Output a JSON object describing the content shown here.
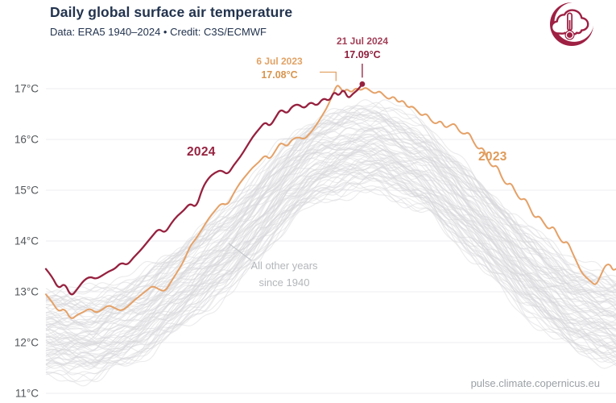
{
  "header": {
    "title": "Daily global surface air temperature",
    "subtitle": "Data: ERA5 1940–2024 • Credit: C3S/ECMWF"
  },
  "logo": {
    "label": "Climate Pulse logo",
    "color": "#9e2043"
  },
  "footer": {
    "url": "pulse.climate.copernicus.eu"
  },
  "chart_data": {
    "type": "line",
    "title": "Daily global surface air temperature",
    "subtitle": "Data: ERA5 1940–2024 • Credit: C3S/ECMWF",
    "x_unit": "day of year (Jan–Dec)",
    "x_range": [
      1,
      365
    ],
    "ylim": [
      11,
      17.6
    ],
    "grid": "horizontal",
    "legend_position": "inline-labels",
    "yticks": [
      {
        "value": 17,
        "label": "17°C"
      },
      {
        "value": 16,
        "label": "16°C"
      },
      {
        "value": 15,
        "label": "15°C"
      },
      {
        "value": 14,
        "label": "14°C"
      },
      {
        "value": 13,
        "label": "13°C"
      },
      {
        "value": 12,
        "label": "12°C"
      },
      {
        "value": 11,
        "label": "11°C"
      }
    ],
    "series": [
      {
        "name": "2024",
        "label": "2024",
        "color": "#96213f",
        "end_dot": true,
        "points": [
          [
            1,
            13.45
          ],
          [
            5,
            13.3
          ],
          [
            9,
            13.05
          ],
          [
            13,
            13.18
          ],
          [
            17,
            12.9
          ],
          [
            21,
            13.05
          ],
          [
            25,
            13.22
          ],
          [
            29,
            13.3
          ],
          [
            33,
            13.25
          ],
          [
            37,
            13.32
          ],
          [
            41,
            13.4
          ],
          [
            45,
            13.45
          ],
          [
            49,
            13.58
          ],
          [
            53,
            13.52
          ],
          [
            57,
            13.68
          ],
          [
            61,
            13.8
          ],
          [
            65,
            13.95
          ],
          [
            69,
            14.1
          ],
          [
            73,
            14.25
          ],
          [
            77,
            14.15
          ],
          [
            81,
            14.35
          ],
          [
            85,
            14.5
          ],
          [
            89,
            14.6
          ],
          [
            93,
            14.75
          ],
          [
            97,
            14.65
          ],
          [
            101,
            15.05
          ],
          [
            105,
            15.25
          ],
          [
            109,
            15.35
          ],
          [
            113,
            15.4
          ],
          [
            117,
            15.3
          ],
          [
            121,
            15.5
          ],
          [
            125,
            15.65
          ],
          [
            129,
            15.85
          ],
          [
            133,
            16.05
          ],
          [
            137,
            16.2
          ],
          [
            141,
            16.35
          ],
          [
            144,
            16.25
          ],
          [
            148,
            16.45
          ],
          [
            151,
            16.6
          ],
          [
            155,
            16.5
          ],
          [
            158,
            16.65
          ],
          [
            162,
            16.7
          ],
          [
            166,
            16.6
          ],
          [
            170,
            16.75
          ],
          [
            174,
            16.65
          ],
          [
            178,
            16.82
          ],
          [
            182,
            16.75
          ],
          [
            185,
            16.95
          ],
          [
            188,
            16.85
          ],
          [
            191,
            17.0
          ],
          [
            194,
            16.8
          ],
          [
            197,
            16.9
          ],
          [
            200,
            16.97
          ],
          [
            203,
            17.09
          ]
        ]
      },
      {
        "name": "2023",
        "label": "2023",
        "color": "#e5a167",
        "label_color": "#df9a58",
        "points": [
          [
            1,
            12.95
          ],
          [
            5,
            12.8
          ],
          [
            9,
            12.6
          ],
          [
            13,
            12.68
          ],
          [
            17,
            12.44
          ],
          [
            21,
            12.55
          ],
          [
            25,
            12.6
          ],
          [
            29,
            12.68
          ],
          [
            33,
            12.58
          ],
          [
            37,
            12.65
          ],
          [
            41,
            12.74
          ],
          [
            45,
            12.68
          ],
          [
            49,
            12.62
          ],
          [
            53,
            12.7
          ],
          [
            57,
            12.82
          ],
          [
            61,
            12.92
          ],
          [
            65,
            13.02
          ],
          [
            69,
            13.12
          ],
          [
            73,
            13.05
          ],
          [
            77,
            13.0
          ],
          [
            81,
            13.2
          ],
          [
            85,
            13.4
          ],
          [
            89,
            13.6
          ],
          [
            93,
            13.9
          ],
          [
            97,
            14.05
          ],
          [
            101,
            14.25
          ],
          [
            105,
            14.45
          ],
          [
            109,
            14.6
          ],
          [
            113,
            14.75
          ],
          [
            117,
            14.7
          ],
          [
            121,
            14.95
          ],
          [
            125,
            15.15
          ],
          [
            129,
            15.3
          ],
          [
            133,
            15.45
          ],
          [
            137,
            15.55
          ],
          [
            141,
            15.7
          ],
          [
            144,
            15.6
          ],
          [
            148,
            15.8
          ],
          [
            151,
            15.95
          ],
          [
            155,
            15.85
          ],
          [
            158,
            16.0
          ],
          [
            162,
            16.05
          ],
          [
            166,
            16.0
          ],
          [
            169,
            16.1
          ],
          [
            173,
            16.25
          ],
          [
            177,
            16.45
          ],
          [
            180,
            16.6
          ],
          [
            183,
            16.8
          ],
          [
            185,
            16.95
          ],
          [
            187,
            17.08
          ],
          [
            189,
            17.02
          ],
          [
            191,
            16.92
          ],
          [
            193,
            17.0
          ],
          [
            196,
            16.92
          ],
          [
            199,
            17.02
          ],
          [
            202,
            16.96
          ],
          [
            205,
            17.03
          ],
          [
            208,
            16.96
          ],
          [
            211,
            16.9
          ],
          [
            214,
            16.96
          ],
          [
            217,
            16.86
          ],
          [
            220,
            16.78
          ],
          [
            223,
            16.86
          ],
          [
            226,
            16.72
          ],
          [
            229,
            16.78
          ],
          [
            232,
            16.62
          ],
          [
            235,
            16.66
          ],
          [
            238,
            16.56
          ],
          [
            241,
            16.46
          ],
          [
            244,
            16.52
          ],
          [
            247,
            16.36
          ],
          [
            250,
            16.3
          ],
          [
            253,
            16.38
          ],
          [
            256,
            16.22
          ],
          [
            259,
            16.28
          ],
          [
            262,
            16.32
          ],
          [
            265,
            16.15
          ],
          [
            268,
            16.1
          ],
          [
            271,
            16.15
          ],
          [
            274,
            15.95
          ],
          [
            277,
            15.8
          ],
          [
            280,
            15.85
          ],
          [
            283,
            15.6
          ],
          [
            286,
            15.45
          ],
          [
            289,
            15.5
          ],
          [
            292,
            15.25
          ],
          [
            295,
            15.1
          ],
          [
            298,
            15.15
          ],
          [
            301,
            14.95
          ],
          [
            304,
            14.8
          ],
          [
            307,
            14.85
          ],
          [
            310,
            14.65
          ],
          [
            313,
            14.45
          ],
          [
            316,
            14.5
          ],
          [
            319,
            14.35
          ],
          [
            322,
            14.22
          ],
          [
            325,
            14.3
          ],
          [
            328,
            14.1
          ],
          [
            331,
            13.95
          ],
          [
            334,
            14.0
          ],
          [
            337,
            13.78
          ],
          [
            340,
            13.58
          ],
          [
            343,
            13.38
          ],
          [
            346,
            13.28
          ],
          [
            349,
            13.2
          ],
          [
            352,
            13.12
          ],
          [
            355,
            13.3
          ],
          [
            358,
            13.52
          ],
          [
            361,
            13.55
          ],
          [
            363,
            13.42
          ],
          [
            365,
            13.45
          ]
        ]
      }
    ],
    "other_years": {
      "label_line1": "All other years",
      "label_line2": "since 1940",
      "count": 83,
      "color": "#d7d7db",
      "band": [
        [
          1,
          12.2,
          1.0
        ],
        [
          32,
          12.15,
          1.0
        ],
        [
          60,
          12.5,
          1.0
        ],
        [
          91,
          13.2,
          1.0
        ],
        [
          121,
          13.95,
          1.0
        ],
        [
          140,
          14.6,
          1.0
        ],
        [
          152,
          15.05,
          1.0
        ],
        [
          170,
          15.55,
          1.0
        ],
        [
          182,
          15.7,
          1.0
        ],
        [
          200,
          15.85,
          1.02
        ],
        [
          215,
          15.85,
          1.02
        ],
        [
          244,
          15.4,
          1.0
        ],
        [
          274,
          14.5,
          1.0
        ],
        [
          305,
          13.5,
          1.0
        ],
        [
          335,
          12.75,
          1.0
        ],
        [
          365,
          12.4,
          1.05
        ]
      ]
    },
    "annotations": [
      {
        "series": "2024",
        "date": "21 Jul 2024",
        "temp": "17.09°C",
        "day": 203,
        "value": 17.09,
        "date_color": "#a34058",
        "temp_color": "#8e1e3c"
      },
      {
        "series": "2023",
        "date": "6 Jul 2023",
        "temp": "17.08°C",
        "day": 187,
        "value": 17.08,
        "date_color": "#e2a265",
        "temp_color": "#d8954e"
      }
    ]
  }
}
